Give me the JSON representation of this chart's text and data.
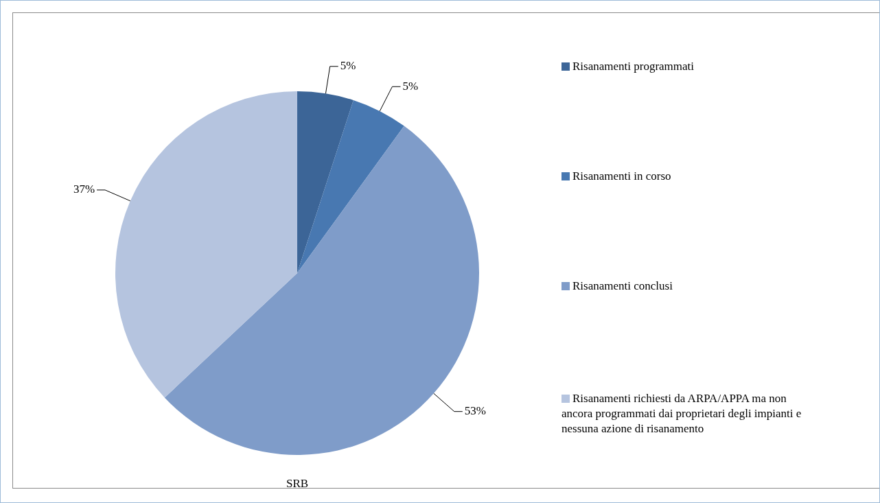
{
  "chart_data": {
    "type": "pie",
    "xlabel": "SRB",
    "categories": [
      "Risanamenti programmati",
      "Risanamenti in corso",
      "Risanamenti conclusi",
      "Risanamenti richiesti da ARPA/APPA ma non ancora programmati dai proprietari degli impianti e nessuna azione di risanamento"
    ],
    "values": [
      5,
      5,
      53,
      37
    ],
    "colors": [
      "#3c6597",
      "#4878b1",
      "#7f9cc9",
      "#b5c4df"
    ],
    "value_labels": [
      "5%",
      "5%",
      "53%",
      "37%"
    ],
    "legend": "right"
  }
}
